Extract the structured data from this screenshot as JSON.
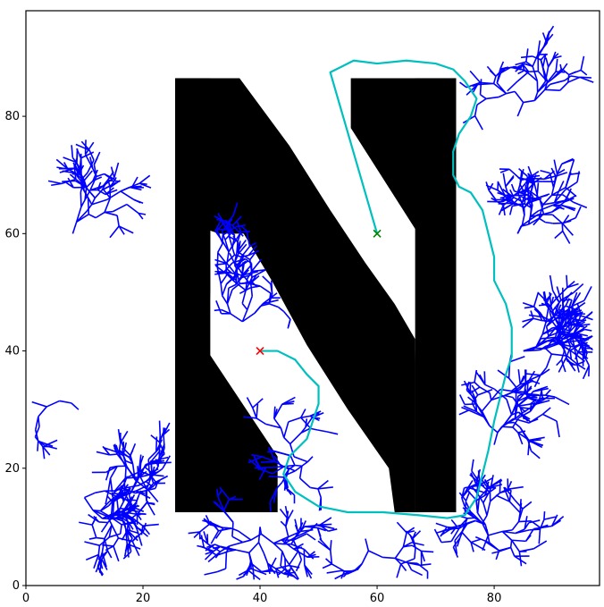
{
  "chart_data": {
    "type": "scatter",
    "title": "",
    "xlabel": "",
    "ylabel": "",
    "xlim": [
      0,
      98
    ],
    "ylim": [
      0,
      98
    ],
    "xticks": [
      "0",
      "20",
      "40",
      "60",
      "80"
    ],
    "yticks": [
      "0",
      "20",
      "40",
      "60",
      "80"
    ],
    "grid": false,
    "obstacle": {
      "color": "#000000",
      "outline": [
        [
          25.5,
          12.5
        ],
        [
          25.5,
          86.5
        ],
        [
          36.5,
          86.5
        ],
        [
          66.5,
          38
        ],
        [
          66.5,
          12.5
        ],
        [
          73.5,
          12.5
        ],
        [
          73.5,
          86.5
        ],
        [
          55.5,
          86.5
        ],
        [
          55.5,
          78
        ],
        [
          67,
          60
        ],
        [
          41,
          60
        ],
        [
          32,
          60
        ],
        [
          31,
          40
        ],
        [
          43,
          22
        ],
        [
          43,
          12.5
        ]
      ],
      "inner_white": [
        [
          31.5,
          60.5
        ],
        [
          31.5,
          41
        ],
        [
          35,
          37.5
        ],
        [
          40,
          33
        ],
        [
          44,
          29
        ],
        [
          48,
          24
        ],
        [
          52,
          21
        ],
        [
          55,
          18
        ],
        [
          58,
          15
        ],
        [
          62,
          12.5
        ],
        [
          62,
          38
        ],
        [
          64,
          39
        ],
        [
          62,
          44
        ],
        [
          58,
          48
        ],
        [
          52,
          52
        ],
        [
          46,
          54
        ],
        [
          40,
          55
        ],
        [
          36,
          57
        ],
        [
          33,
          60
        ]
      ]
    },
    "start": {
      "x": 40,
      "y": 40,
      "marker": "x",
      "color": "#ff0000"
    },
    "goal": {
      "x": 60,
      "y": 60,
      "marker": "x",
      "color": "#008000"
    },
    "tree": {
      "color": "#0000ff",
      "seed": 7
    },
    "path": {
      "color": "#00bfbf",
      "points": [
        [
          40,
          40
        ],
        [
          43,
          40
        ],
        [
          46,
          38.5
        ],
        [
          48,
          36
        ],
        [
          50,
          34
        ],
        [
          50,
          31
        ],
        [
          49,
          28
        ],
        [
          48,
          25
        ],
        [
          45,
          22
        ],
        [
          44,
          19
        ],
        [
          46,
          16
        ],
        [
          50,
          13.5
        ],
        [
          55,
          12.5
        ],
        [
          61,
          12.5
        ],
        [
          67,
          12
        ],
        [
          72,
          11.5
        ],
        [
          75,
          12
        ],
        [
          77,
          15
        ],
        [
          78,
          19
        ],
        [
          79,
          23
        ],
        [
          80,
          28
        ],
        [
          81,
          32
        ],
        [
          82,
          36
        ],
        [
          83,
          39
        ],
        [
          83,
          44
        ],
        [
          82,
          48
        ],
        [
          80,
          52
        ],
        [
          80,
          56
        ],
        [
          79,
          60
        ],
        [
          78,
          64
        ],
        [
          76,
          67
        ],
        [
          74,
          68
        ],
        [
          73,
          70
        ],
        [
          73,
          74
        ],
        [
          74,
          77
        ],
        [
          76,
          80
        ],
        [
          77,
          83
        ],
        [
          75,
          86
        ],
        [
          73,
          88
        ],
        [
          70,
          89
        ],
        [
          65,
          89.5
        ],
        [
          60,
          89
        ],
        [
          56,
          89.5
        ],
        [
          53,
          88
        ],
        [
          52,
          87.5
        ],
        [
          60,
          60
        ]
      ]
    }
  }
}
